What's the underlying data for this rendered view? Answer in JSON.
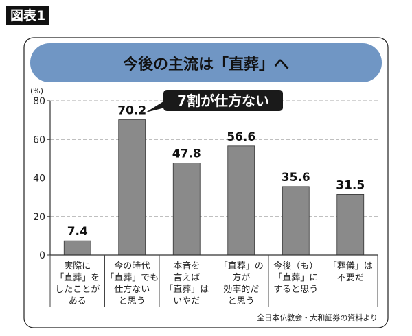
{
  "figure_label": "図表1",
  "chart_data": {
    "type": "bar",
    "title": "今後の主流は「直葬」へ",
    "ylabel": "(%)",
    "ylim": [
      0,
      80
    ],
    "yticks": [
      "0",
      "20",
      "40",
      "60",
      "80"
    ],
    "grid": true,
    "categories": [
      [
        "実際に",
        "「直葬」を",
        "したことが",
        "ある"
      ],
      [
        "今の時代",
        "「直葬」でも",
        "仕方ない",
        "と思う"
      ],
      [
        "本音を",
        "言えば",
        "「直葬」は",
        "いやだ"
      ],
      [
        "「直葬」の",
        "方が",
        "効率的だ",
        "と思う"
      ],
      [
        "今後（も）",
        "「直葬」に",
        "すると思う"
      ],
      [
        "「葬儀」は",
        "不要だ"
      ]
    ],
    "values": [
      7.4,
      70.2,
      47.8,
      56.6,
      35.6,
      31.5
    ],
    "value_labels": [
      "7.4",
      "70.2",
      "47.8",
      "56.6",
      "35.6",
      "31.5"
    ],
    "annotation": "7割が仕方ない",
    "source": "全日本仏教会・大和証券の資料より",
    "colors": {
      "bar": "#8a8a8a",
      "title_band": "#7096c4",
      "callout": "#1a1a1a"
    }
  }
}
